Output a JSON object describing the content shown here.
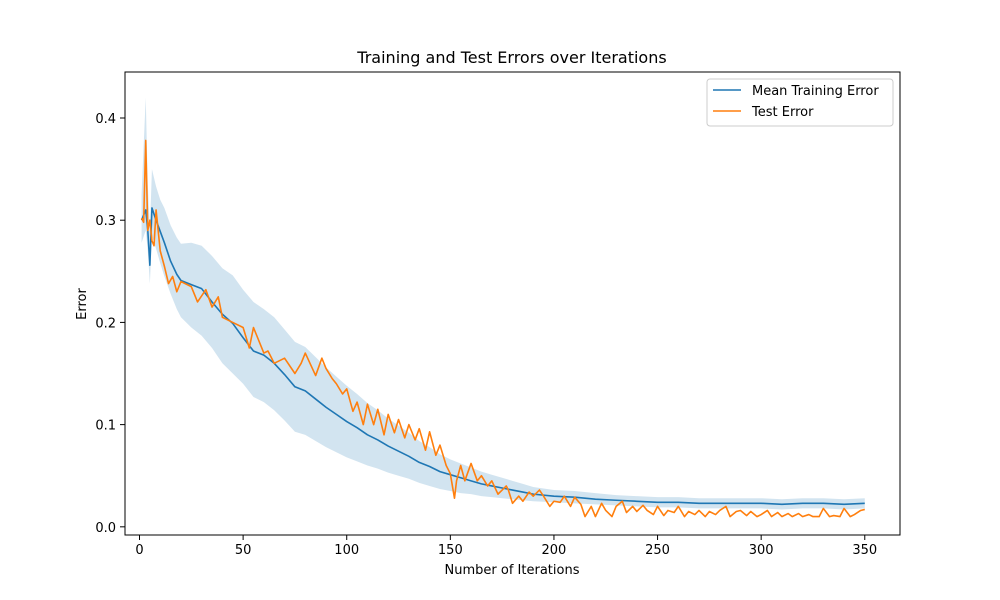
{
  "chart_data": {
    "type": "line",
    "title": "Training and Test Errors over Iterations",
    "xlabel": "Number of Iterations",
    "ylabel": "Error",
    "xlim": [
      -7,
      367
    ],
    "ylim": [
      -0.008,
      0.445
    ],
    "xticks": [
      0,
      50,
      100,
      150,
      200,
      250,
      300,
      350
    ],
    "yticks": [
      0.0,
      0.1,
      0.2,
      0.3,
      0.4
    ],
    "ytick_labels": [
      "0.0",
      "0.1",
      "0.2",
      "0.3",
      "0.4"
    ],
    "grid": false,
    "legend_position": "top-right",
    "colors": {
      "train": "#1f77b4",
      "test": "#ff7f0e",
      "band": "#1f77b4"
    },
    "series": [
      {
        "name": "Mean Training Error",
        "x": [
          1,
          3,
          4,
          5,
          6,
          8,
          10,
          12,
          15,
          18,
          20,
          25,
          30,
          35,
          40,
          45,
          50,
          55,
          60,
          65,
          70,
          75,
          80,
          85,
          90,
          95,
          100,
          105,
          110,
          115,
          120,
          125,
          130,
          135,
          140,
          145,
          150,
          155,
          160,
          165,
          170,
          175,
          180,
          185,
          190,
          200,
          210,
          220,
          230,
          240,
          250,
          260,
          270,
          280,
          290,
          300,
          310,
          320,
          330,
          340,
          350
        ],
        "y": [
          0.3,
          0.31,
          0.29,
          0.256,
          0.312,
          0.3,
          0.289,
          0.278,
          0.26,
          0.247,
          0.241,
          0.237,
          0.233,
          0.22,
          0.208,
          0.199,
          0.185,
          0.172,
          0.168,
          0.16,
          0.149,
          0.137,
          0.133,
          0.125,
          0.117,
          0.11,
          0.103,
          0.097,
          0.09,
          0.085,
          0.079,
          0.074,
          0.069,
          0.063,
          0.059,
          0.054,
          0.051,
          0.048,
          0.045,
          0.042,
          0.04,
          0.038,
          0.036,
          0.034,
          0.032,
          0.03,
          0.029,
          0.027,
          0.026,
          0.025,
          0.024,
          0.024,
          0.023,
          0.023,
          0.023,
          0.023,
          0.022,
          0.023,
          0.023,
          0.022,
          0.023
        ],
        "lower": [
          0.278,
          0.29,
          0.27,
          0.238,
          0.285,
          0.272,
          0.258,
          0.245,
          0.228,
          0.213,
          0.205,
          0.195,
          0.187,
          0.175,
          0.16,
          0.15,
          0.14,
          0.127,
          0.122,
          0.114,
          0.104,
          0.093,
          0.09,
          0.084,
          0.078,
          0.073,
          0.068,
          0.064,
          0.06,
          0.057,
          0.053,
          0.05,
          0.047,
          0.043,
          0.04,
          0.037,
          0.035,
          0.033,
          0.032,
          0.03,
          0.029,
          0.028,
          0.027,
          0.026,
          0.025,
          0.024,
          0.023,
          0.022,
          0.021,
          0.02,
          0.019,
          0.019,
          0.018,
          0.018,
          0.018,
          0.018,
          0.017,
          0.018,
          0.018,
          0.017,
          0.018
        ],
        "upper": [
          0.325,
          0.42,
          0.335,
          0.29,
          0.35,
          0.333,
          0.32,
          0.312,
          0.295,
          0.283,
          0.277,
          0.278,
          0.275,
          0.265,
          0.253,
          0.246,
          0.232,
          0.22,
          0.213,
          0.205,
          0.193,
          0.181,
          0.176,
          0.166,
          0.156,
          0.147,
          0.138,
          0.13,
          0.121,
          0.114,
          0.106,
          0.099,
          0.092,
          0.084,
          0.078,
          0.071,
          0.066,
          0.062,
          0.058,
          0.054,
          0.051,
          0.048,
          0.045,
          0.042,
          0.039,
          0.036,
          0.035,
          0.033,
          0.031,
          0.03,
          0.029,
          0.029,
          0.028,
          0.028,
          0.028,
          0.028,
          0.027,
          0.028,
          0.028,
          0.027,
          0.028
        ]
      },
      {
        "name": "Test Error",
        "x": [
          1,
          2,
          3,
          4,
          5,
          6,
          7,
          8,
          10,
          12,
          14,
          16,
          18,
          20,
          25,
          28,
          32,
          35,
          38,
          40,
          45,
          50,
          53,
          55,
          60,
          62,
          65,
          70,
          75,
          78,
          80,
          85,
          88,
          90,
          93,
          95,
          98,
          100,
          103,
          105,
          108,
          110,
          113,
          115,
          118,
          120,
          123,
          125,
          128,
          130,
          133,
          135,
          138,
          140,
          143,
          145,
          148,
          150,
          152,
          153,
          155,
          157,
          160,
          163,
          165,
          168,
          170,
          173,
          175,
          177,
          178,
          180,
          183,
          185,
          188,
          190,
          193,
          195,
          198,
          200,
          203,
          205,
          208,
          210,
          213,
          215,
          218,
          220,
          223,
          225,
          228,
          230,
          233,
          235,
          238,
          240,
          243,
          245,
          248,
          250,
          253,
          255,
          258,
          260,
          263,
          265,
          268,
          270,
          273,
          275,
          278,
          280,
          283,
          285,
          288,
          290,
          293,
          295,
          298,
          300,
          303,
          305,
          308,
          310,
          313,
          315,
          318,
          320,
          323,
          325,
          328,
          330,
          333,
          335,
          338,
          340,
          343,
          345,
          348,
          350
        ],
        "y": [
          0.302,
          0.298,
          0.378,
          0.29,
          0.3,
          0.28,
          0.275,
          0.31,
          0.27,
          0.255,
          0.238,
          0.245,
          0.23,
          0.24,
          0.235,
          0.22,
          0.232,
          0.215,
          0.225,
          0.205,
          0.2,
          0.195,
          0.175,
          0.195,
          0.17,
          0.172,
          0.16,
          0.165,
          0.15,
          0.16,
          0.17,
          0.148,
          0.165,
          0.155,
          0.145,
          0.14,
          0.13,
          0.135,
          0.113,
          0.122,
          0.1,
          0.12,
          0.1,
          0.115,
          0.09,
          0.11,
          0.092,
          0.105,
          0.087,
          0.1,
          0.085,
          0.096,
          0.075,
          0.093,
          0.07,
          0.08,
          0.06,
          0.052,
          0.028,
          0.045,
          0.06,
          0.045,
          0.062,
          0.045,
          0.05,
          0.04,
          0.045,
          0.032,
          0.036,
          0.04,
          0.036,
          0.023,
          0.03,
          0.025,
          0.034,
          0.03,
          0.036,
          0.03,
          0.02,
          0.025,
          0.024,
          0.03,
          0.02,
          0.029,
          0.022,
          0.01,
          0.02,
          0.01,
          0.023,
          0.016,
          0.01,
          0.02,
          0.025,
          0.014,
          0.02,
          0.015,
          0.021,
          0.016,
          0.012,
          0.02,
          0.011,
          0.016,
          0.014,
          0.02,
          0.01,
          0.015,
          0.012,
          0.016,
          0.01,
          0.015,
          0.012,
          0.016,
          0.02,
          0.01,
          0.015,
          0.016,
          0.011,
          0.015,
          0.01,
          0.012,
          0.016,
          0.01,
          0.014,
          0.01,
          0.013,
          0.01,
          0.013,
          0.01,
          0.012,
          0.01,
          0.01,
          0.018,
          0.01,
          0.011,
          0.01,
          0.018,
          0.01,
          0.012,
          0.016,
          0.017
        ]
      }
    ]
  }
}
